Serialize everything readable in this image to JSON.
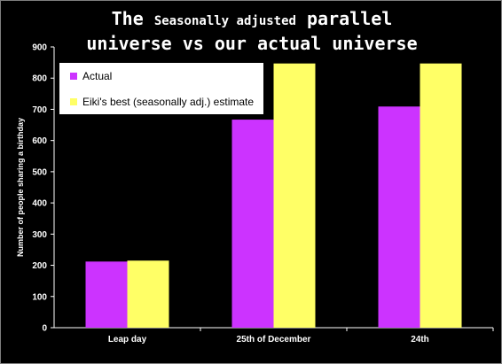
{
  "title": {
    "part1": "The",
    "part2": "Seasonally adjusted",
    "part3": "parallel",
    "line2": "universe vs our actual universe"
  },
  "chart_data": {
    "type": "bar",
    "categories": [
      "Leap day",
      "25th of December",
      "24th"
    ],
    "series": [
      {
        "name": "Actual",
        "color": "#cc33ff",
        "values": [
          212,
          667,
          709
        ]
      },
      {
        "name": "Eiki's best (seasonally adj.) estimate",
        "color": "#ffff66",
        "values": [
          215,
          847,
          847
        ]
      }
    ],
    "ylabel": "Number of people sharing a birthday",
    "ylim": [
      0,
      900
    ],
    "yticks": [
      0,
      100,
      200,
      300,
      400,
      500,
      600,
      700,
      800,
      900
    ],
    "grid": false,
    "legend_position": "top-left"
  }
}
